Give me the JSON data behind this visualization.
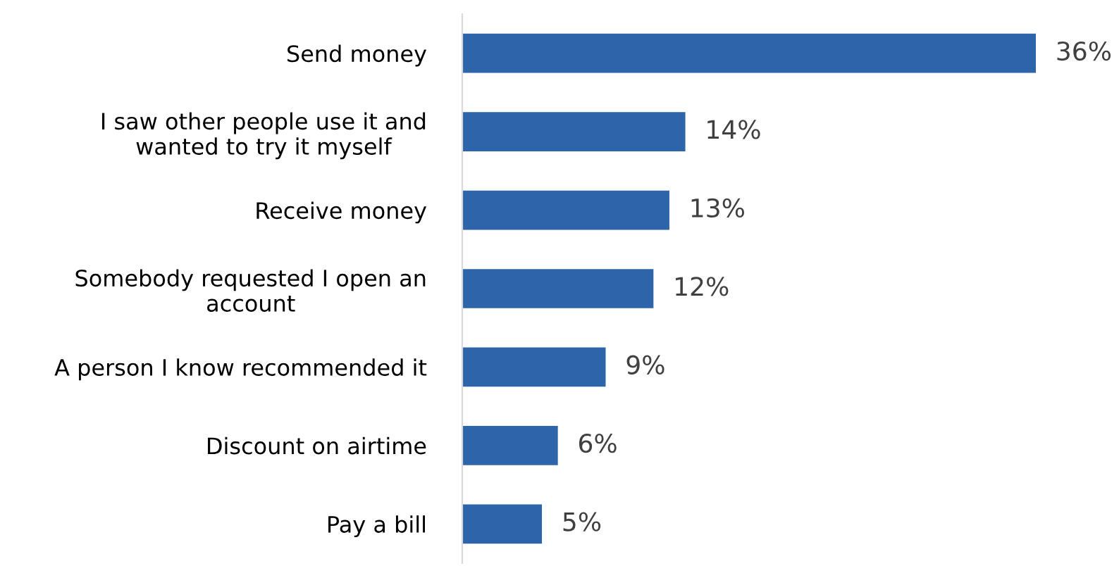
{
  "chart_data": {
    "type": "bar",
    "orientation": "horizontal",
    "categories": [
      "Send money",
      "I saw other people use it and\nwanted to try it myself",
      "Receive money",
      "Somebody requested I open an\naccount",
      "A person I know recommended it",
      "Discount on airtime",
      "Pay a bill"
    ],
    "values": [
      36,
      14,
      13,
      12,
      9,
      6,
      5
    ],
    "value_labels": [
      "36%",
      "14%",
      "13%",
      "12%",
      "9%",
      "6%",
      "5%"
    ],
    "color": "#2e64a9",
    "grid": false,
    "legend": false
  }
}
